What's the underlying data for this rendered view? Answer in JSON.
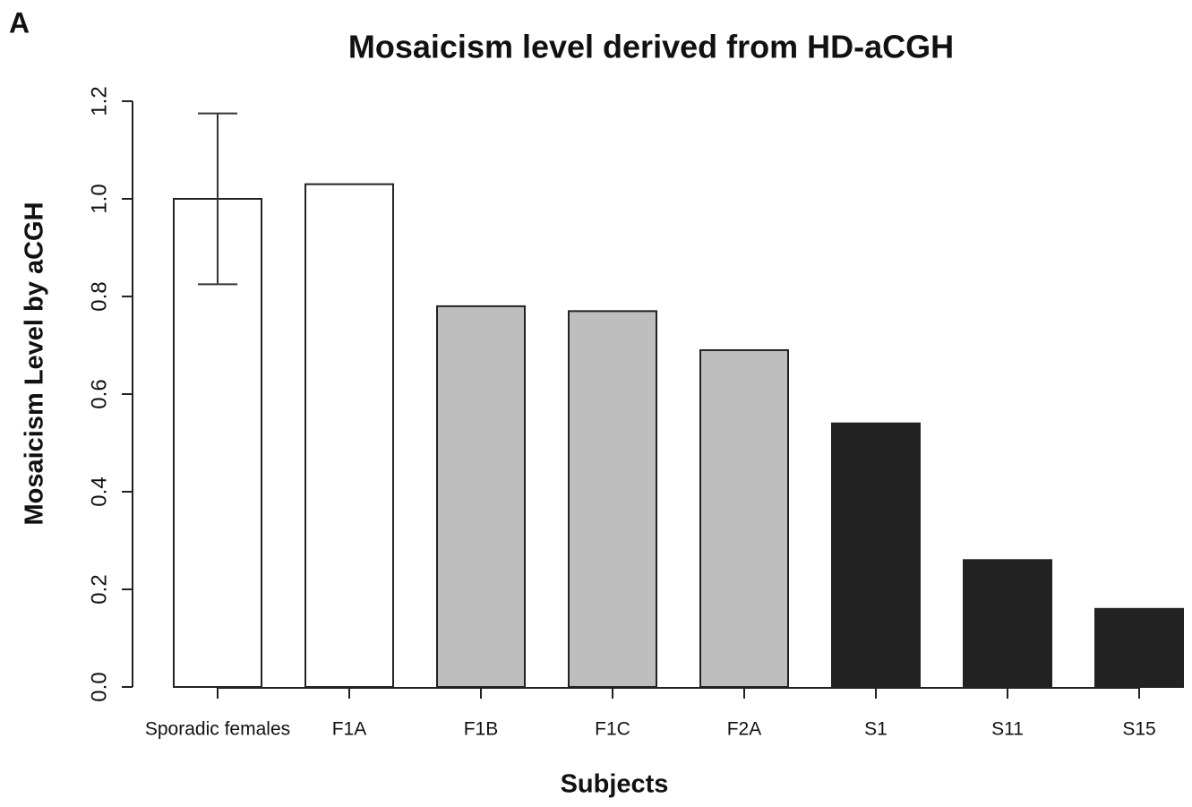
{
  "panel_label": "A",
  "chart_data": {
    "type": "bar",
    "title": "Mosaicism level derived from HD-aCGH",
    "x_label": "Subjects",
    "y_label": "Mosaicism Level by aCGH",
    "categories": [
      "Sporadic females",
      "F1A",
      "F1B",
      "F1C",
      "F2A",
      "S1",
      "S11",
      "S15"
    ],
    "values": [
      1.0,
      1.03,
      0.78,
      0.77,
      0.69,
      0.54,
      0.26,
      0.16
    ],
    "errors": [
      0.175,
      null,
      null,
      null,
      null,
      null,
      null,
      null
    ],
    "colors": [
      "#ffffff",
      "#ffffff",
      "#bebebe",
      "#bebebe",
      "#bebebe",
      "#222222",
      "#222222",
      "#222222"
    ],
    "ylim": [
      0,
      1.2
    ],
    "yticks": [
      {
        "value": 0,
        "label": "0.0"
      },
      0.2,
      0.4,
      0.6,
      0.8,
      {
        "value": 1,
        "label": "1.0"
      },
      1.2
    ]
  }
}
